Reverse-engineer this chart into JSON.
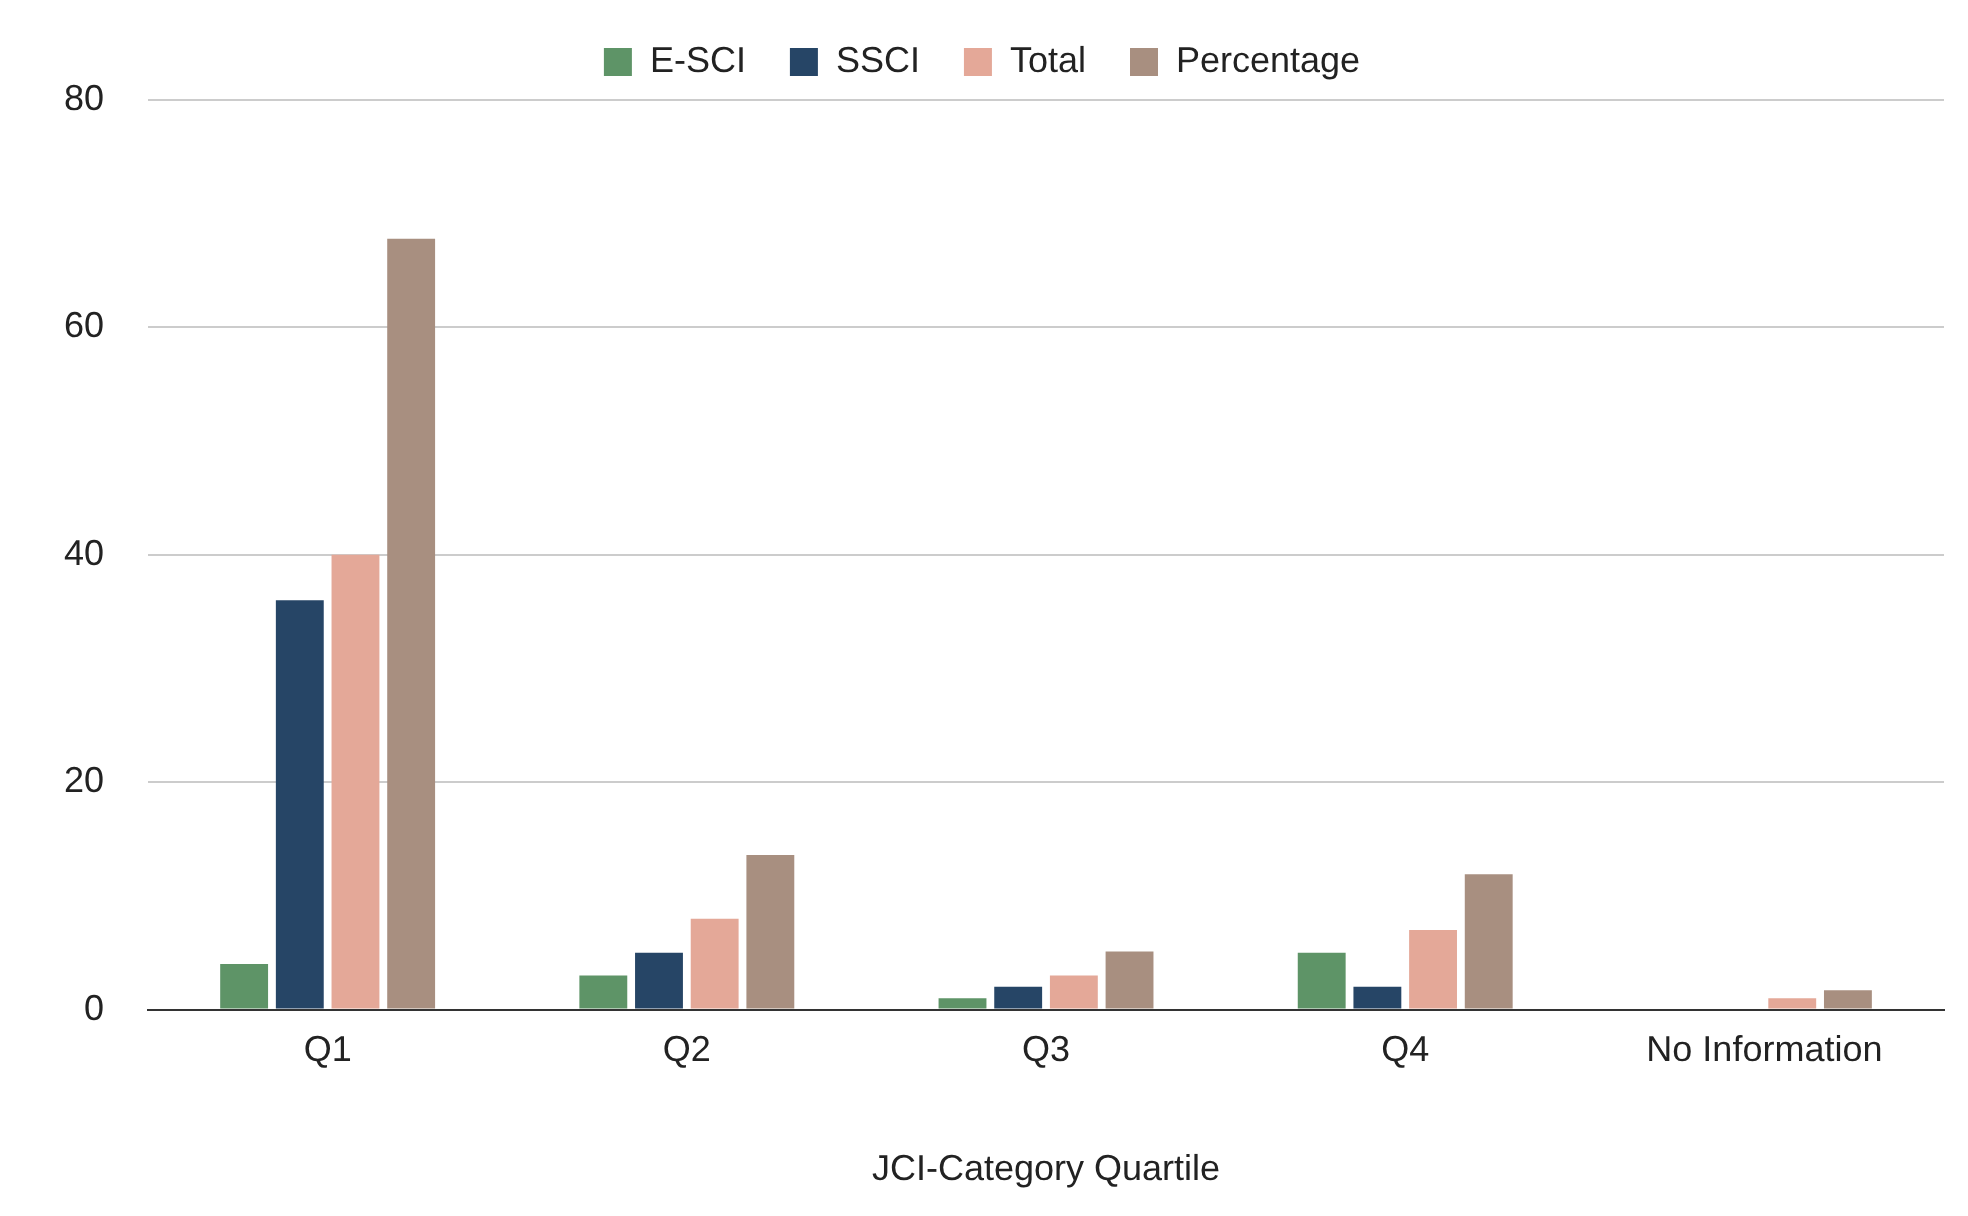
{
  "chart_data": {
    "type": "bar",
    "xlabel": "JCI-Category Quartile",
    "categories": [
      "Q1",
      "Q2",
      "Q3",
      "Q4",
      "No Information"
    ],
    "series": [
      {
        "name": "E-SCI",
        "color": "#5e9467",
        "values": [
          4,
          3,
          1,
          5,
          0
        ]
      },
      {
        "name": "SSCI",
        "color": "#264566",
        "values": [
          36,
          5,
          2,
          2,
          0
        ]
      },
      {
        "name": "Total",
        "color": "#e4a898",
        "values": [
          40,
          8,
          3,
          7,
          1
        ]
      },
      {
        "name": "Percentage",
        "color": "#a88f80",
        "values": [
          67.8,
          13.6,
          5.1,
          11.9,
          1.7
        ]
      }
    ],
    "ylim": [
      0,
      80
    ],
    "yticks": [
      0,
      20,
      40,
      60,
      80
    ],
    "grid": "y",
    "legend": "top"
  }
}
